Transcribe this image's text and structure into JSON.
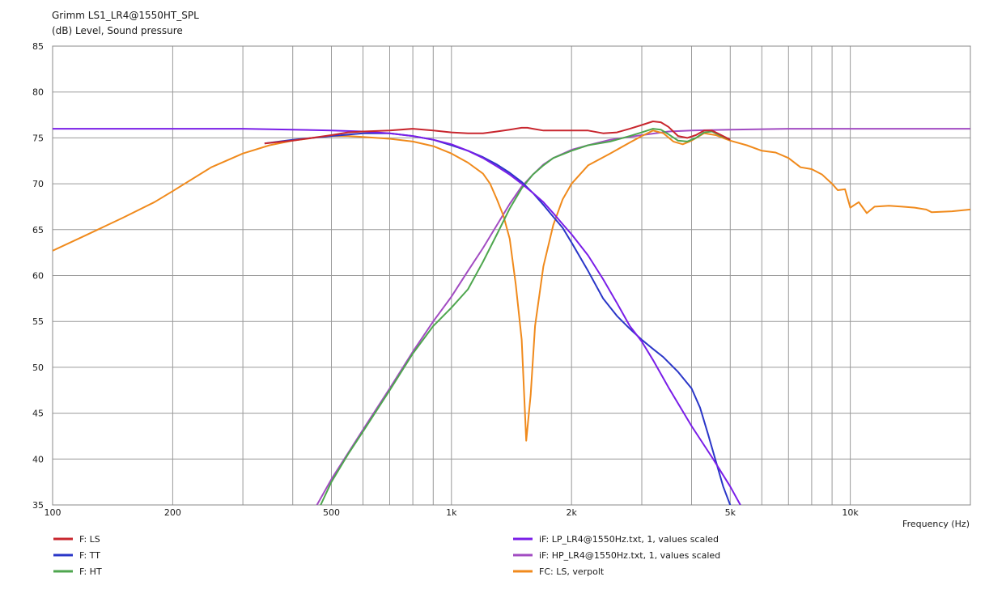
{
  "chart_data": {
    "type": "line",
    "title": "Grimm LS1_LR4@1550HT_SPL",
    "subtitle": "(dB)  Level, Sound pressure",
    "xlabel": "Frequency  (Hz)",
    "ylabel": "",
    "x_scale": "log",
    "xlim": [
      100,
      20000
    ],
    "ylim": [
      35,
      85
    ],
    "grid": true,
    "x_ticks": [
      {
        "value": 100,
        "label": "100"
      },
      {
        "value": 200,
        "label": "200"
      },
      {
        "value": 500,
        "label": "500"
      },
      {
        "value": 1000,
        "label": "1k"
      },
      {
        "value": 2000,
        "label": "2k"
      },
      {
        "value": 5000,
        "label": "5k"
      },
      {
        "value": 10000,
        "label": "10k"
      }
    ],
    "y_ticks": [
      35,
      40,
      45,
      50,
      55,
      60,
      65,
      70,
      75,
      80,
      85
    ],
    "legend_position": "bottom",
    "series": [
      {
        "name": "F: LS",
        "color": "#c8262e",
        "points": [
          [
            340,
            74.4
          ],
          [
            400,
            74.7
          ],
          [
            500,
            75.3
          ],
          [
            550,
            75.6
          ],
          [
            600,
            75.7
          ],
          [
            700,
            75.8
          ],
          [
            800,
            76.0
          ],
          [
            900,
            75.8
          ],
          [
            1000,
            75.6
          ],
          [
            1100,
            75.5
          ],
          [
            1200,
            75.5
          ],
          [
            1300,
            75.7
          ],
          [
            1400,
            75.9
          ],
          [
            1500,
            76.1
          ],
          [
            1550,
            76.1
          ],
          [
            1600,
            76.0
          ],
          [
            1700,
            75.8
          ],
          [
            1800,
            75.8
          ],
          [
            2000,
            75.8
          ],
          [
            2200,
            75.8
          ],
          [
            2400,
            75.5
          ],
          [
            2600,
            75.6
          ],
          [
            2800,
            76.0
          ],
          [
            3000,
            76.4
          ],
          [
            3200,
            76.8
          ],
          [
            3350,
            76.7
          ],
          [
            3500,
            76.2
          ],
          [
            3700,
            75.2
          ],
          [
            3900,
            75.0
          ],
          [
            4100,
            75.3
          ],
          [
            4300,
            75.8
          ],
          [
            4500,
            75.8
          ],
          [
            4700,
            75.4
          ],
          [
            5000,
            74.8
          ]
        ]
      },
      {
        "name": "F: TT",
        "color": "#2a36c8",
        "points": [
          [
            340,
            74.4
          ],
          [
            400,
            74.8
          ],
          [
            500,
            75.2
          ],
          [
            600,
            75.5
          ],
          [
            700,
            75.5
          ],
          [
            800,
            75.2
          ],
          [
            900,
            74.8
          ],
          [
            1000,
            74.2
          ],
          [
            1100,
            73.6
          ],
          [
            1200,
            72.9
          ],
          [
            1300,
            72.1
          ],
          [
            1400,
            71.2
          ],
          [
            1500,
            70.2
          ],
          [
            1600,
            69.0
          ],
          [
            1700,
            67.7
          ],
          [
            1800,
            66.4
          ],
          [
            1900,
            65.2
          ],
          [
            2000,
            63.6
          ],
          [
            2200,
            60.5
          ],
          [
            2400,
            57.5
          ],
          [
            2600,
            55.6
          ],
          [
            2800,
            54.2
          ],
          [
            3000,
            53.0
          ],
          [
            3200,
            52.0
          ],
          [
            3400,
            51.1
          ],
          [
            3700,
            49.5
          ],
          [
            4000,
            47.7
          ],
          [
            4200,
            45.6
          ],
          [
            4400,
            42.7
          ],
          [
            4600,
            39.8
          ],
          [
            4800,
            37.0
          ],
          [
            5100,
            34.0
          ]
        ]
      },
      {
        "name": "F: HT",
        "color": "#4ea64e",
        "points": [
          [
            470,
            35.0
          ],
          [
            500,
            37.5
          ],
          [
            550,
            40.5
          ],
          [
            600,
            43.0
          ],
          [
            700,
            47.5
          ],
          [
            800,
            51.5
          ],
          [
            900,
            54.5
          ],
          [
            1000,
            56.5
          ],
          [
            1100,
            58.5
          ],
          [
            1200,
            61.5
          ],
          [
            1300,
            64.5
          ],
          [
            1400,
            67.3
          ],
          [
            1500,
            69.5
          ],
          [
            1600,
            71.0
          ],
          [
            1700,
            72.0
          ],
          [
            1800,
            72.8
          ],
          [
            2000,
            73.6
          ],
          [
            2200,
            74.2
          ],
          [
            2500,
            74.6
          ],
          [
            2800,
            75.2
          ],
          [
            3000,
            75.6
          ],
          [
            3200,
            76.0
          ],
          [
            3350,
            75.9
          ],
          [
            3500,
            75.4
          ],
          [
            3700,
            74.7
          ],
          [
            3900,
            74.6
          ],
          [
            4100,
            75.0
          ],
          [
            4300,
            75.6
          ],
          [
            4500,
            75.7
          ],
          [
            4700,
            75.3
          ],
          [
            5000,
            74.8
          ]
        ]
      },
      {
        "name": "iF: LP_LR4@1550Hz.txt, 1, values scaled",
        "color": "#7a1ee8",
        "points": [
          [
            100,
            76.0
          ],
          [
            300,
            76.0
          ],
          [
            400,
            75.9
          ],
          [
            500,
            75.8
          ],
          [
            600,
            75.7
          ],
          [
            700,
            75.5
          ],
          [
            800,
            75.2
          ],
          [
            900,
            74.8
          ],
          [
            1000,
            74.3
          ],
          [
            1100,
            73.6
          ],
          [
            1200,
            72.8
          ],
          [
            1300,
            71.9
          ],
          [
            1400,
            71.0
          ],
          [
            1500,
            70.0
          ],
          [
            1600,
            69.0
          ],
          [
            1700,
            68.0
          ],
          [
            1800,
            66.8
          ],
          [
            1900,
            65.6
          ],
          [
            2000,
            64.5
          ],
          [
            2200,
            62.2
          ],
          [
            2400,
            59.6
          ],
          [
            2600,
            57.0
          ],
          [
            2800,
            54.5
          ],
          [
            3000,
            52.8
          ],
          [
            3200,
            50.8
          ],
          [
            3500,
            47.8
          ],
          [
            4000,
            43.6
          ],
          [
            4500,
            40.2
          ],
          [
            5000,
            37.0
          ],
          [
            5300,
            35.0
          ]
        ]
      },
      {
        "name": "iF: HP_LR4@1550Hz.txt, 1, values scaled",
        "color": "#a24cc2",
        "points": [
          [
            460,
            35.0
          ],
          [
            500,
            37.8
          ],
          [
            600,
            43.2
          ],
          [
            700,
            47.7
          ],
          [
            800,
            51.7
          ],
          [
            900,
            55.0
          ],
          [
            1000,
            57.7
          ],
          [
            1100,
            60.5
          ],
          [
            1200,
            63.0
          ],
          [
            1300,
            65.5
          ],
          [
            1400,
            67.8
          ],
          [
            1500,
            69.7
          ],
          [
            1600,
            71.0
          ],
          [
            1700,
            72.1
          ],
          [
            1800,
            72.8
          ],
          [
            2000,
            73.7
          ],
          [
            2200,
            74.2
          ],
          [
            2500,
            74.8
          ],
          [
            3000,
            75.3
          ],
          [
            3500,
            75.7
          ],
          [
            4000,
            75.8
          ],
          [
            5000,
            75.9
          ],
          [
            7000,
            76.0
          ],
          [
            10000,
            76.0
          ],
          [
            20000,
            76.0
          ]
        ]
      },
      {
        "name": "FC: LS, verpolt",
        "color": "#f08a1c",
        "points": [
          [
            100,
            62.7
          ],
          [
            120,
            64.3
          ],
          [
            150,
            66.3
          ],
          [
            180,
            68.0
          ],
          [
            200,
            69.2
          ],
          [
            250,
            71.8
          ],
          [
            300,
            73.3
          ],
          [
            350,
            74.2
          ],
          [
            400,
            74.7
          ],
          [
            450,
            75.0
          ],
          [
            500,
            75.2
          ],
          [
            550,
            75.2
          ],
          [
            600,
            75.1
          ],
          [
            700,
            74.9
          ],
          [
            800,
            74.6
          ],
          [
            900,
            74.1
          ],
          [
            1000,
            73.3
          ],
          [
            1100,
            72.3
          ],
          [
            1200,
            71.1
          ],
          [
            1250,
            70.0
          ],
          [
            1300,
            68.3
          ],
          [
            1350,
            66.5
          ],
          [
            1400,
            64.0
          ],
          [
            1450,
            59.0
          ],
          [
            1500,
            53.0
          ],
          [
            1540,
            42.0
          ],
          [
            1580,
            47.0
          ],
          [
            1620,
            54.5
          ],
          [
            1700,
            61.0
          ],
          [
            1800,
            65.5
          ],
          [
            1900,
            68.3
          ],
          [
            2000,
            70.0
          ],
          [
            2200,
            72.0
          ],
          [
            2500,
            73.3
          ],
          [
            2800,
            74.5
          ],
          [
            3000,
            75.2
          ],
          [
            3200,
            75.8
          ],
          [
            3400,
            75.5
          ],
          [
            3600,
            74.6
          ],
          [
            3800,
            74.3
          ],
          [
            4000,
            74.7
          ],
          [
            4300,
            75.5
          ],
          [
            4600,
            75.3
          ],
          [
            5000,
            74.7
          ],
          [
            5500,
            74.2
          ],
          [
            6000,
            73.6
          ],
          [
            6500,
            73.4
          ],
          [
            7000,
            72.8
          ],
          [
            7500,
            71.8
          ],
          [
            8000,
            71.6
          ],
          [
            8500,
            71.0
          ],
          [
            9000,
            70.0
          ],
          [
            9300,
            69.3
          ],
          [
            9700,
            69.4
          ],
          [
            10000,
            67.4
          ],
          [
            10500,
            68.0
          ],
          [
            11000,
            66.8
          ],
          [
            11500,
            67.5
          ],
          [
            12500,
            67.6
          ],
          [
            13500,
            67.5
          ],
          [
            14500,
            67.4
          ],
          [
            15500,
            67.2
          ],
          [
            16000,
            66.9
          ],
          [
            18000,
            67.0
          ],
          [
            20000,
            67.2
          ]
        ]
      }
    ]
  }
}
